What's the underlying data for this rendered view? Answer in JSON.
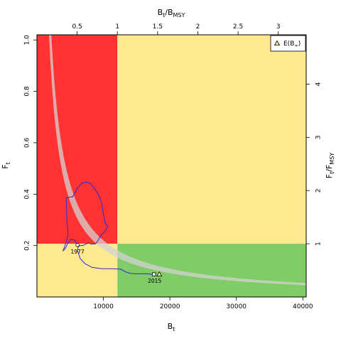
{
  "chart_data": {
    "type": "line",
    "xlabel": "B",
    "xlabel_sub": "t",
    "ylabel": "F",
    "ylabel_sub": "t",
    "top_axis_label": {
      "base": "B",
      "sub1": "t",
      "sep": "/B",
      "sub2": "MSY"
    },
    "right_axis_label": {
      "base": "F",
      "sub1": "t",
      "sep": "/F",
      "sub2": "MSY"
    },
    "xlim": [
      0,
      40500
    ],
    "ylim": [
      0,
      1.02
    ],
    "bmsy": 12100,
    "fmsy": 0.207,
    "x_ticks": [
      10000,
      20000,
      30000,
      40000
    ],
    "x_tick_labels": [
      "10000",
      "20000",
      "30000",
      "40000"
    ],
    "y_ticks": [
      0.2,
      0.4,
      0.6,
      0.8,
      1.0
    ],
    "y_tick_labels": [
      "0.2",
      "0.4",
      "0.6",
      "0.8",
      "1.0"
    ],
    "top_ticks": [
      0.5,
      1,
      1.5,
      2,
      2.5,
      3
    ],
    "top_tick_labels": [
      "0.5",
      "1",
      "1.5",
      "2",
      "2.5",
      "3"
    ],
    "right_ticks": [
      1,
      2,
      3,
      4
    ],
    "right_tick_labels": [
      "1",
      "2",
      "3",
      "4"
    ],
    "zone_colors": {
      "red": "#ff3333",
      "yellow": "#ffe98f",
      "green": "#80cc66",
      "band": "#d3d3d3",
      "trajectory": "#2a2ad6"
    },
    "msy_band": {
      "k_lower": 1850,
      "k_upper": 2200
    },
    "trajectory": {
      "x": [
        6100,
        5600,
        5100,
        4700,
        4300,
        3900,
        4200,
        4700,
        4500,
        4400,
        4800,
        5400,
        6100,
        6800,
        7500,
        8100,
        8700,
        9200,
        9700,
        10000,
        10300,
        10700,
        10200,
        9600,
        9200,
        8800,
        8300,
        7700,
        7300,
        6900,
        6500,
        6200,
        6100,
        6500,
        7200,
        8300,
        9800,
        11200,
        12600,
        13400,
        14000,
        14800,
        15600,
        16400,
        17500
      ],
      "y": [
        0.205,
        0.222,
        0.224,
        0.212,
        0.19,
        0.178,
        0.198,
        0.24,
        0.3,
        0.385,
        0.388,
        0.39,
        0.425,
        0.443,
        0.448,
        0.44,
        0.42,
        0.4,
        0.37,
        0.32,
        0.285,
        0.275,
        0.255,
        0.24,
        0.22,
        0.207,
        0.205,
        0.21,
        0.205,
        0.2,
        0.2,
        0.195,
        0.18,
        0.15,
        0.13,
        0.115,
        0.11,
        0.11,
        0.108,
        0.097,
        0.092,
        0.09,
        0.09,
        0.09,
        0.088
      ]
    },
    "start_point": {
      "x": 6100,
      "y": 0.202,
      "label": "1977"
    },
    "end_point": {
      "x": 17600,
      "y": 0.088,
      "label": "2015"
    },
    "expected_point": {
      "x": 18400,
      "y": 0.088
    },
    "legend": {
      "position": "top-right",
      "entries": [
        {
          "marker": "triangle",
          "label": "E(B",
          "sub": "∞",
          "close": ")"
        }
      ]
    }
  }
}
